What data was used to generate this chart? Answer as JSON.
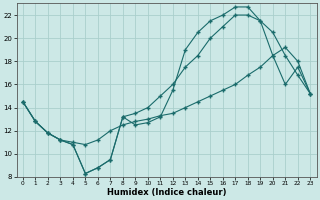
{
  "xlabel": "Humidex (Indice chaleur)",
  "bg_color": "#cce8e6",
  "line_color": "#1a6b6b",
  "grid_color": "#aacfcc",
  "xlim": [
    -0.5,
    23.5
  ],
  "ylim": [
    8,
    23
  ],
  "xticks": [
    0,
    1,
    2,
    3,
    4,
    5,
    6,
    7,
    8,
    9,
    10,
    11,
    12,
    13,
    14,
    15,
    16,
    17,
    18,
    19,
    20,
    21,
    22,
    23
  ],
  "yticks": [
    8,
    10,
    12,
    14,
    16,
    18,
    20,
    22
  ],
  "line1_x": [
    0,
    1,
    2,
    3,
    4,
    5,
    6,
    7,
    8,
    9,
    10,
    11,
    12,
    13,
    14,
    15,
    16,
    17,
    18,
    19,
    20,
    21,
    22,
    23
  ],
  "line1_y": [
    14.5,
    12.8,
    11.8,
    11.2,
    10.8,
    8.3,
    8.8,
    9.5,
    13.2,
    12.5,
    12.7,
    13.2,
    15.5,
    19.0,
    20.5,
    21.5,
    22.0,
    22.7,
    22.7,
    21.5,
    20.5,
    18.5,
    16.8,
    15.2
  ],
  "line2_x": [
    0,
    1,
    2,
    3,
    4,
    5,
    6,
    7,
    8,
    9,
    10,
    11,
    12,
    13,
    14,
    15,
    16,
    17,
    18,
    19,
    20,
    21,
    22,
    23
  ],
  "line2_y": [
    14.5,
    12.8,
    11.8,
    11.2,
    10.8,
    8.3,
    8.8,
    9.5,
    13.2,
    13.5,
    14.0,
    15.0,
    16.0,
    17.5,
    18.5,
    20.0,
    21.0,
    22.0,
    22.0,
    21.5,
    18.5,
    16.0,
    17.5,
    15.2
  ],
  "line3_x": [
    0,
    1,
    2,
    3,
    4,
    5,
    6,
    7,
    8,
    9,
    10,
    11,
    12,
    13,
    14,
    15,
    16,
    17,
    18,
    19,
    20,
    21,
    22,
    23
  ],
  "line3_y": [
    14.5,
    12.8,
    11.8,
    11.2,
    11.0,
    10.8,
    11.2,
    12.0,
    12.5,
    12.8,
    13.0,
    13.3,
    13.5,
    14.0,
    14.5,
    15.0,
    15.5,
    16.0,
    16.8,
    17.5,
    18.5,
    19.2,
    18.0,
    15.2
  ]
}
